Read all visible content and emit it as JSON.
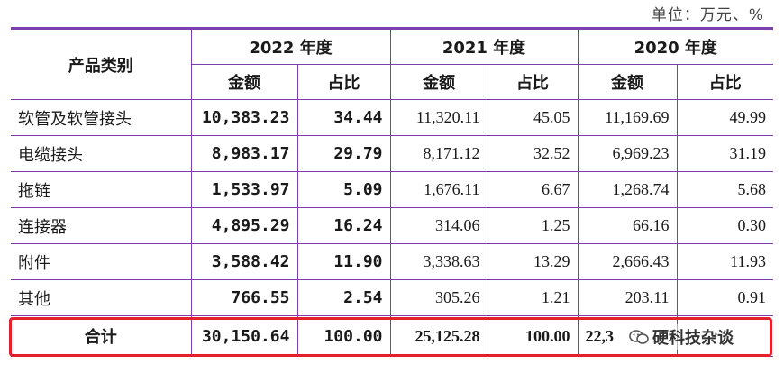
{
  "unit_note": "单位：万元、%",
  "header": {
    "category": "产品类别",
    "years": [
      "2022 年度",
      "2021 年度",
      "2020 年度"
    ],
    "amount": "金额",
    "ratio": "占比"
  },
  "rows": [
    {
      "name": "软管及软管接头",
      "y2022_amount": "10,383.23",
      "y2022_ratio": "34.44",
      "y2021_amount": "11,320.11",
      "y2021_ratio": "45.05",
      "y2020_amount": "11,169.69",
      "y2020_ratio": "49.99"
    },
    {
      "name": "电缆接头",
      "y2022_amount": "8,983.17",
      "y2022_ratio": "29.79",
      "y2021_amount": "8,171.12",
      "y2021_ratio": "32.52",
      "y2020_amount": "6,969.23",
      "y2020_ratio": "31.19"
    },
    {
      "name": "拖链",
      "y2022_amount": "1,533.97",
      "y2022_ratio": "5.09",
      "y2021_amount": "1,676.11",
      "y2021_ratio": "6.67",
      "y2020_amount": "1,268.74",
      "y2020_ratio": "5.68"
    },
    {
      "name": "连接器",
      "y2022_amount": "4,895.29",
      "y2022_ratio": "16.24",
      "y2021_amount": "314.06",
      "y2021_ratio": "1.25",
      "y2020_amount": "66.16",
      "y2020_ratio": "0.30"
    },
    {
      "name": "附件",
      "y2022_amount": "3,588.42",
      "y2022_ratio": "11.90",
      "y2021_amount": "3,338.63",
      "y2021_ratio": "13.29",
      "y2020_amount": "2,666.43",
      "y2020_ratio": "11.93"
    },
    {
      "name": "其他",
      "y2022_amount": "766.55",
      "y2022_ratio": "2.54",
      "y2021_amount": "305.26",
      "y2021_ratio": "1.21",
      "y2020_amount": "203.11",
      "y2020_ratio": "0.91"
    }
  ],
  "total": {
    "name": "合计",
    "y2022_amount": "30,150.64",
    "y2022_ratio": "100.00",
    "y2021_amount": "25,125.28",
    "y2021_ratio": "100.00",
    "y2020_amount": "22,3",
    "y2020_ratio": ""
  },
  "watermark": "硬科技杂谈",
  "colors": {
    "table_border": "#7b3fb0",
    "highlight": "#e5202e"
  }
}
